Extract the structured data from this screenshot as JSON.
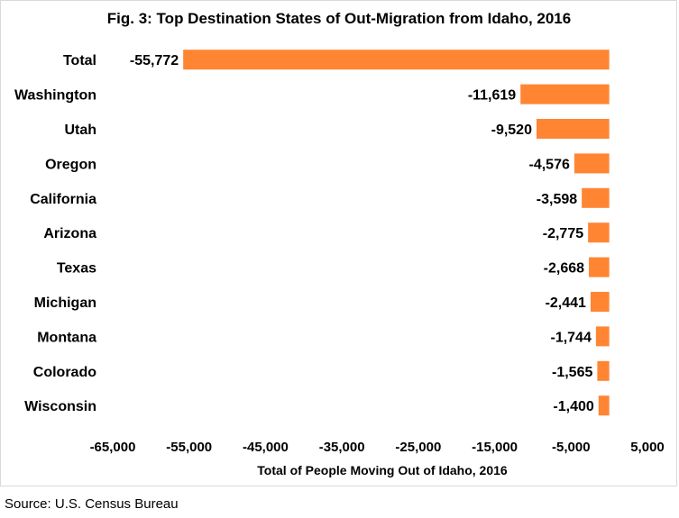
{
  "chart_data": {
    "type": "bar",
    "orientation": "horizontal",
    "title": "Fig. 3: Top Destination States of Out-Migration from Idaho, 2016",
    "categories": [
      "Total",
      "Washington",
      "Utah",
      "Oregon",
      "California",
      "Arizona",
      "Texas",
      "Michigan",
      "Montana",
      "Colorado",
      "Wisconsin"
    ],
    "values": [
      -55772,
      -11619,
      -9520,
      -4576,
      -3598,
      -2775,
      -2668,
      -2441,
      -1744,
      -1565,
      -1400
    ],
    "value_labels": [
      "-55,772",
      "-11,619",
      "-9,520",
      "-4,576",
      "-3,598",
      "-2,775",
      "-2,668",
      "-2,441",
      "-1,744",
      "-1,565",
      "-1,400"
    ],
    "xlabel": "Total of People Moving Out of Idaho, 2016",
    "ylabel": "",
    "xlim": [
      -65000,
      5000
    ],
    "xticks": [
      -65000,
      -55000,
      -45000,
      -35000,
      -25000,
      -15000,
      -5000,
      5000
    ],
    "xtick_labels": [
      "-65,000",
      "-55,000",
      "-45,000",
      "-35,000",
      "-25,000",
      "-15,000",
      "-5,000",
      "5,000"
    ],
    "bar_color": "#FF8533",
    "grid": false
  },
  "source": "Source: U.S. Census Bureau"
}
